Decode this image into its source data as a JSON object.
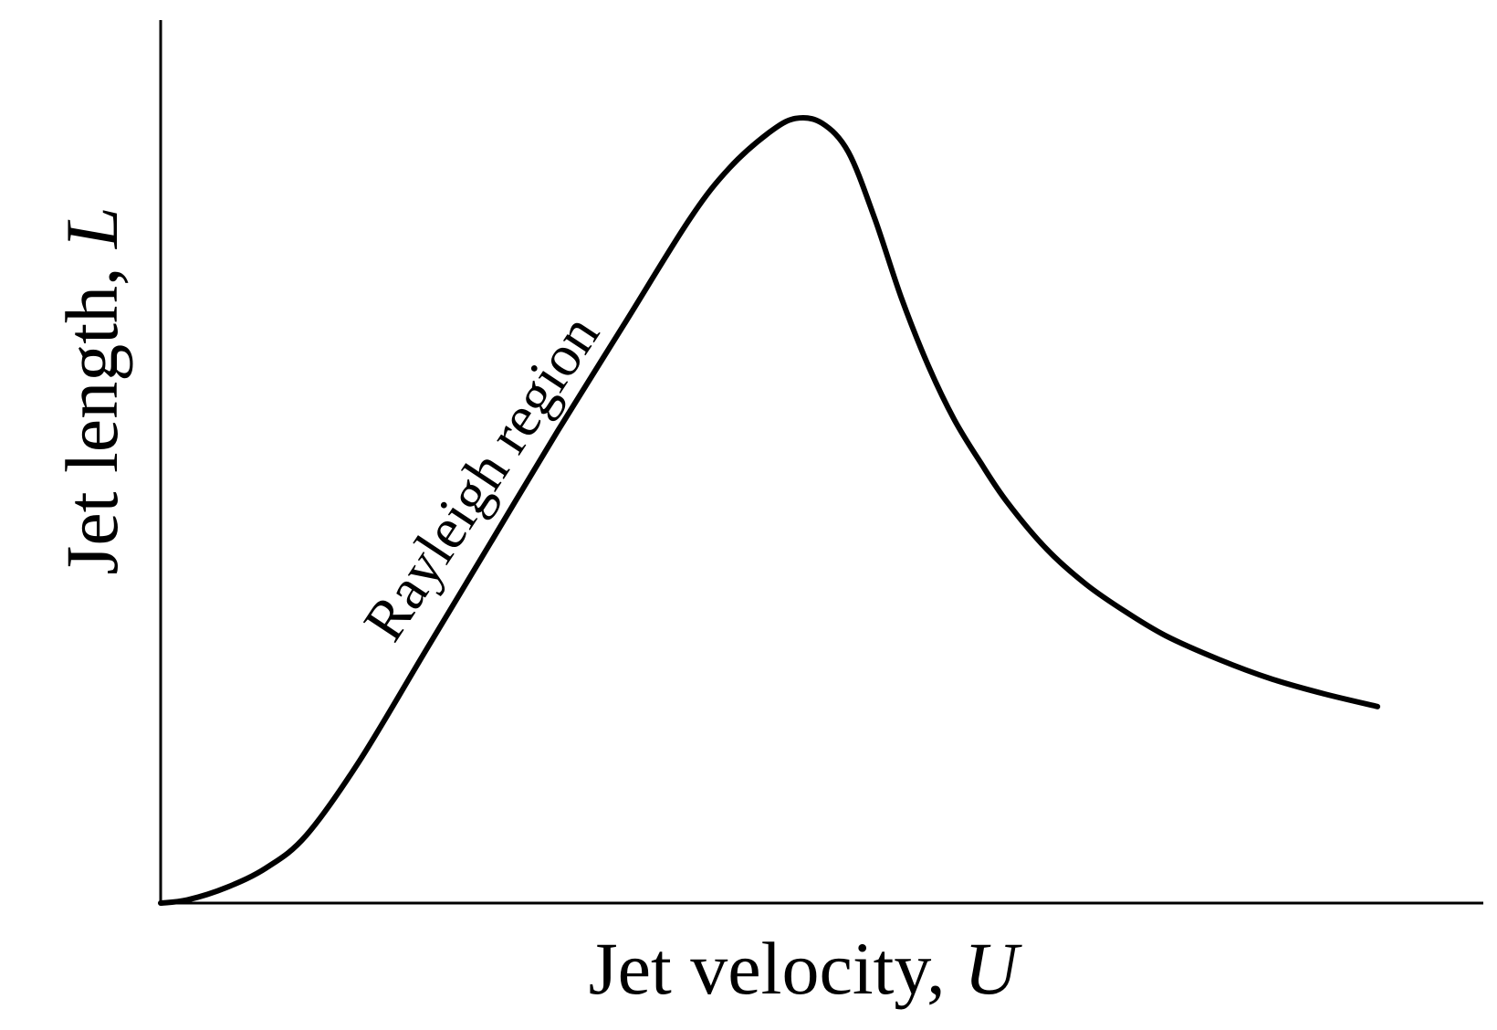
{
  "chart_data": {
    "type": "line",
    "title": "",
    "xlabel": {
      "text": "Jet velocity",
      "separator": ", ",
      "symbol": "U"
    },
    "ylabel": {
      "text": "Jet length",
      "separator": ", ",
      "symbol": "L"
    },
    "xlim": [
      0,
      1
    ],
    "ylim": [
      0,
      1
    ],
    "grid": false,
    "ticks": false,
    "series": [
      {
        "line_color": "#000000",
        "x": [
          0.0,
          0.02,
          0.05,
          0.08,
          0.11,
          0.15,
          0.2,
          0.25,
          0.3,
          0.35,
          0.4,
          0.43,
          0.46,
          0.48,
          0.5,
          0.52,
          0.54,
          0.56,
          0.58,
          0.6,
          0.62,
          0.64,
          0.67,
          0.7,
          0.73,
          0.76,
          0.8,
          0.84,
          0.88,
          0.92
        ],
        "y": [
          0.0,
          0.004,
          0.02,
          0.045,
          0.086,
          0.18,
          0.32,
          0.46,
          0.6,
          0.735,
          0.87,
          0.935,
          0.98,
          0.998,
          0.992,
          0.955,
          0.87,
          0.77,
          0.685,
          0.615,
          0.56,
          0.51,
          0.45,
          0.405,
          0.37,
          0.34,
          0.31,
          0.285,
          0.266,
          0.25
        ]
      }
    ],
    "annotations": [
      {
        "text": "Rayleigh region"
      }
    ],
    "axis_color": "#000000"
  }
}
